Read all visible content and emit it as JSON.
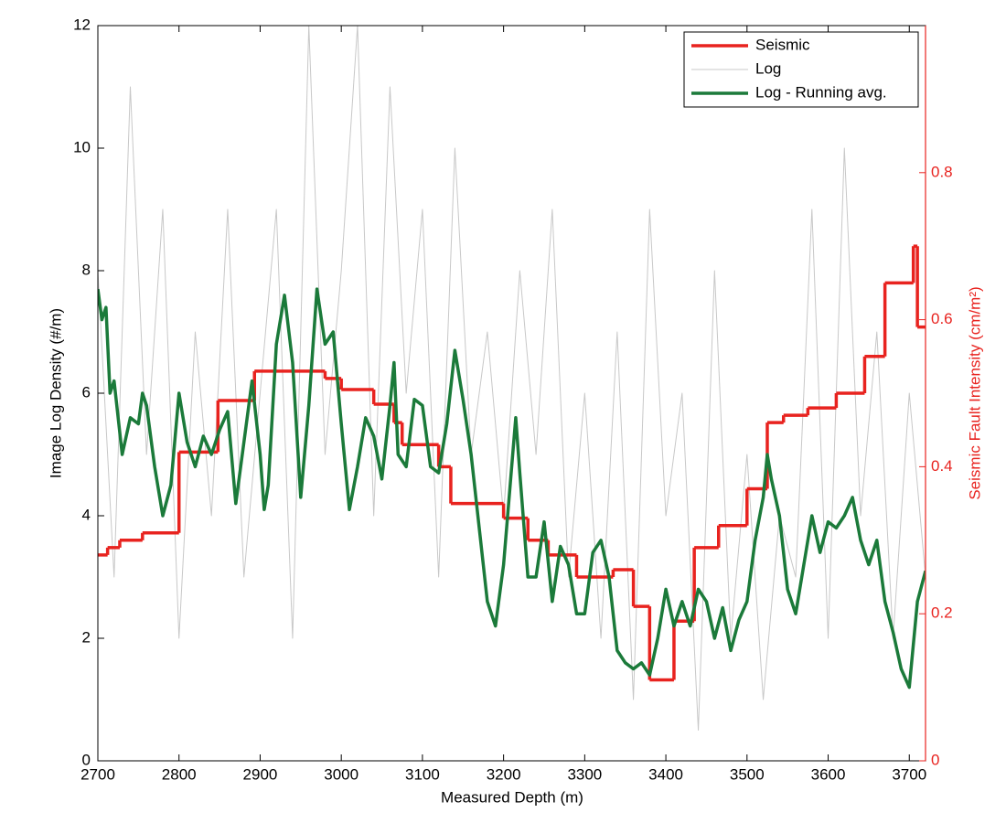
{
  "chart_data": {
    "type": "line",
    "xlabel": "Measured Depth (m)",
    "ylabel": "Image Log Density (#/m)",
    "y2label": "Seismic Fault Intensity (cm/m²)",
    "xlim": [
      2700,
      3720
    ],
    "xticks": [
      2700,
      2800,
      2900,
      3000,
      3100,
      3200,
      3300,
      3400,
      3500,
      3600,
      3700
    ],
    "ylim": [
      0,
      12
    ],
    "yticks": [
      0,
      2,
      4,
      6,
      8,
      10,
      12
    ],
    "y2lim": [
      0,
      1
    ],
    "y2ticks": [
      0,
      0.2,
      0.4,
      0.6,
      0.8
    ],
    "y2color": "#e8231f",
    "legend": "upper right",
    "series": [
      {
        "name": "Seismic",
        "color": "#e8231f",
        "axis": "y2",
        "step": "post",
        "x": [
          2700,
          2712,
          2727,
          2755,
          2800,
          2848,
          2893,
          2980,
          3000,
          3040,
          3065,
          3075,
          3120,
          3135,
          3200,
          3230,
          3255,
          3290,
          3335,
          3360,
          3380,
          3410,
          3435,
          3465,
          3500,
          3525,
          3545,
          3575,
          3610,
          3645,
          3670,
          3705,
          3710
        ],
        "values": [
          0.28,
          0.29,
          0.3,
          0.31,
          0.42,
          0.49,
          0.53,
          0.52,
          0.505,
          0.485,
          0.46,
          0.43,
          0.4,
          0.35,
          0.33,
          0.3,
          0.28,
          0.25,
          0.26,
          0.21,
          0.11,
          0.19,
          0.29,
          0.32,
          0.37,
          0.46,
          0.47,
          0.48,
          0.5,
          0.55,
          0.65,
          0.7,
          0.59
        ]
      },
      {
        "name": "Log",
        "color": "#c8c8c8",
        "x": [
          2700,
          2720,
          2740,
          2760,
          2780,
          2800,
          2820,
          2840,
          2860,
          2880,
          2900,
          2920,
          2940,
          2960,
          2980,
          3000,
          3020,
          3040,
          3060,
          3080,
          3100,
          3120,
          3140,
          3160,
          3180,
          3200,
          3220,
          3240,
          3260,
          3280,
          3300,
          3320,
          3340,
          3360,
          3380,
          3400,
          3420,
          3440,
          3460,
          3480,
          3500,
          3520,
          3540,
          3560,
          3580,
          3600,
          3620,
          3640,
          3660,
          3680,
          3700,
          3720
        ],
        "values": [
          8,
          3,
          11,
          5,
          9,
          2,
          7,
          4,
          9,
          3,
          6,
          9,
          2,
          12,
          5,
          8,
          12,
          4,
          11,
          6,
          9,
          3,
          10,
          5,
          7,
          4,
          8,
          5,
          9,
          3,
          6,
          2,
          7,
          1,
          9,
          4,
          6,
          0.5,
          8,
          2,
          5,
          1,
          4,
          3,
          9,
          2,
          10,
          4,
          7,
          2,
          6,
          3
        ]
      },
      {
        "name": "Log - Running avg.",
        "color": "#1b7a3a",
        "x": [
          2700,
          2705,
          2710,
          2715,
          2720,
          2730,
          2740,
          2750,
          2755,
          2760,
          2770,
          2780,
          2790,
          2800,
          2810,
          2820,
          2830,
          2840,
          2850,
          2860,
          2870,
          2880,
          2890,
          2900,
          2905,
          2910,
          2920,
          2930,
          2940,
          2950,
          2960,
          2970,
          2980,
          2990,
          3000,
          3010,
          3020,
          3030,
          3040,
          3050,
          3060,
          3065,
          3070,
          3080,
          3090,
          3100,
          3110,
          3120,
          3130,
          3140,
          3150,
          3160,
          3170,
          3180,
          3190,
          3200,
          3210,
          3215,
          3220,
          3230,
          3240,
          3250,
          3260,
          3270,
          3280,
          3290,
          3300,
          3310,
          3320,
          3330,
          3340,
          3350,
          3360,
          3370,
          3380,
          3390,
          3400,
          3410,
          3420,
          3430,
          3440,
          3450,
          3460,
          3470,
          3480,
          3490,
          3500,
          3510,
          3520,
          3525,
          3530,
          3540,
          3550,
          3560,
          3570,
          3580,
          3590,
          3600,
          3610,
          3620,
          3630,
          3640,
          3650,
          3660,
          3670,
          3680,
          3690,
          3700,
          3710,
          3720
        ],
        "values": [
          7.7,
          7.2,
          7.4,
          6.0,
          6.2,
          5.0,
          5.6,
          5.5,
          6.0,
          5.8,
          4.8,
          4.0,
          4.5,
          6.0,
          5.2,
          4.8,
          5.3,
          5.0,
          5.4,
          5.7,
          4.2,
          5.2,
          6.2,
          5.0,
          4.1,
          4.5,
          6.8,
          7.6,
          6.5,
          4.3,
          5.8,
          7.7,
          6.8,
          7.0,
          5.5,
          4.1,
          4.8,
          5.6,
          5.3,
          4.6,
          5.8,
          6.5,
          5.0,
          4.8,
          5.9,
          5.8,
          4.8,
          4.7,
          5.5,
          6.7,
          5.9,
          5.0,
          3.8,
          2.6,
          2.2,
          3.2,
          4.8,
          5.6,
          4.7,
          3.0,
          3.0,
          3.9,
          2.6,
          3.5,
          3.2,
          2.4,
          2.4,
          3.4,
          3.6,
          3.0,
          1.8,
          1.6,
          1.5,
          1.6,
          1.4,
          2.0,
          2.8,
          2.2,
          2.6,
          2.2,
          2.8,
          2.6,
          2.0,
          2.5,
          1.8,
          2.3,
          2.6,
          3.6,
          4.3,
          5.0,
          4.6,
          4.0,
          2.8,
          2.4,
          3.2,
          4.0,
          3.4,
          3.9,
          3.8,
          4.0,
          4.3,
          3.6,
          3.2,
          3.6,
          2.6,
          2.1,
          1.5,
          1.2,
          2.6,
          3.1
        ]
      }
    ]
  }
}
